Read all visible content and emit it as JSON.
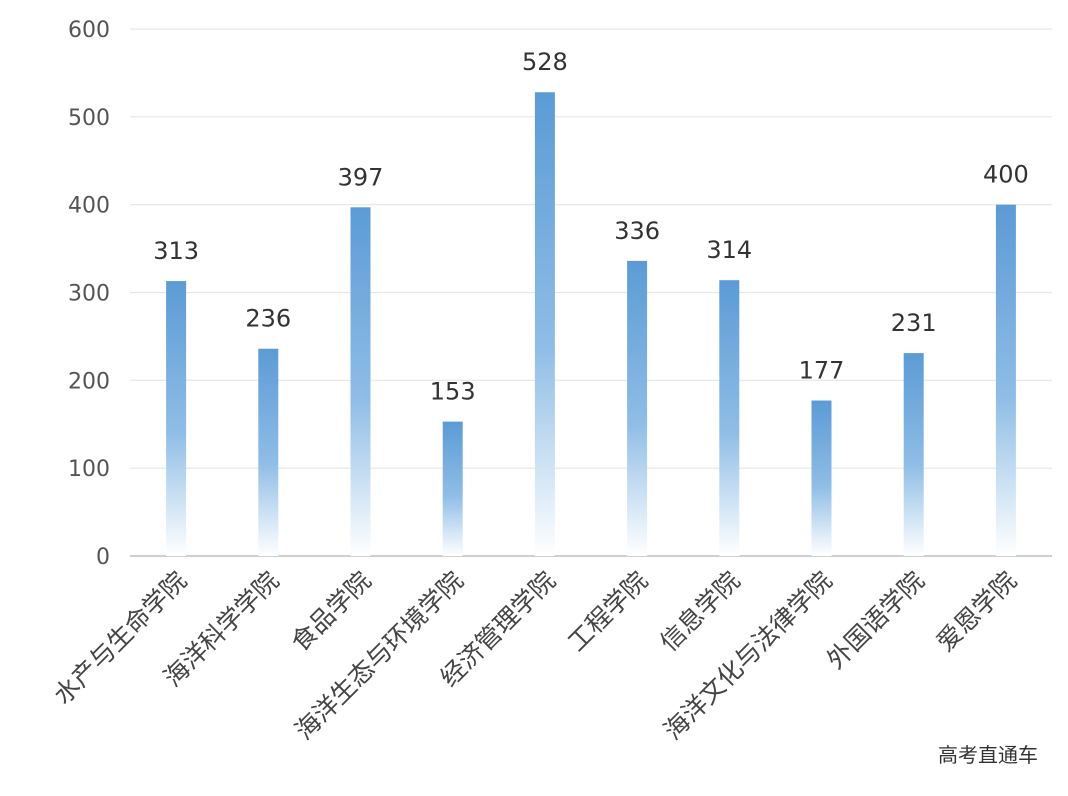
{
  "chart_data": {
    "type": "bar",
    "title": "",
    "xlabel": "",
    "ylabel": "",
    "categories": [
      "水产与生命学院",
      "海洋科学学院",
      "食品学院",
      "海洋生态与环境学院",
      "经济管理学院",
      "工程学院",
      "信息学院",
      "海洋文化与法律学院",
      "外国语学院",
      "爱恩学院"
    ],
    "values": [
      313,
      236,
      397,
      153,
      528,
      336,
      314,
      177,
      231,
      400
    ],
    "ylim": [
      0,
      600
    ],
    "yticks": [
      0,
      100,
      200,
      300,
      400,
      500,
      600
    ],
    "grid": true,
    "legend": "none",
    "bar_color_top": "#5b9bd5",
    "bar_color_bottom": "#ffffff",
    "grid_color": "#e6e6e6",
    "axis_color": "#bfbfbf"
  },
  "watermark": "高考直通车"
}
